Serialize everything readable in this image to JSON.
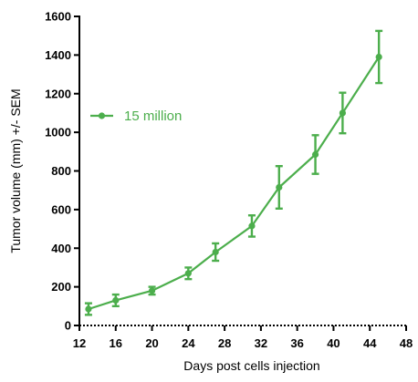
{
  "chart_data": {
    "type": "line",
    "title": "",
    "xlabel": "Days post cells injection",
    "ylabel": "Tumor volume (mm)  +/- SEM",
    "xlim": [
      12,
      48
    ],
    "ylim": [
      0,
      1600
    ],
    "xticks": [
      12,
      16,
      20,
      24,
      28,
      32,
      36,
      40,
      44,
      48
    ],
    "yticks": [
      0,
      200,
      400,
      600,
      800,
      1000,
      1200,
      1400,
      1600
    ],
    "grid": false,
    "legend_position": "left",
    "colors": {
      "series": "#4cae4c",
      "axis": "#000000"
    },
    "series": [
      {
        "name": "15 million",
        "x": [
          13,
          16,
          20,
          24,
          27,
          31,
          34,
          38,
          41,
          45
        ],
        "y": [
          85,
          130,
          180,
          270,
          380,
          515,
          715,
          885,
          1100,
          1390
        ],
        "sem": [
          30,
          30,
          20,
          30,
          45,
          55,
          110,
          100,
          105,
          135
        ]
      }
    ]
  }
}
